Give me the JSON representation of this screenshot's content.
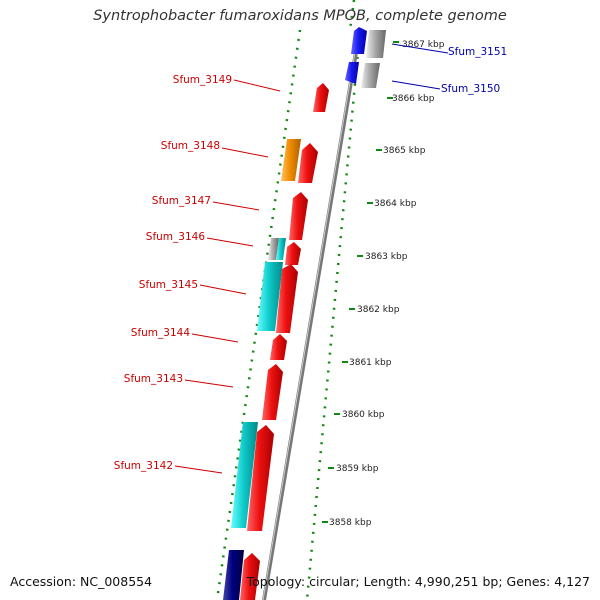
{
  "title": "Syntrophobacter fumaroxidans MPOB, complete genome",
  "footer": {
    "accession": "Accession: NC_008554",
    "topology": "Topology: circular; Length: 4,990,251 bp; Genes: 4,127"
  },
  "colors": {
    "forward": "#ee1111",
    "reverse": "#1a1aee",
    "orange": "#f08c00",
    "cyan": "#11cccc",
    "gray": "#aaaaaa",
    "navy": "#000080",
    "tick": "#118811",
    "backbone": "#888888"
  },
  "gene_labels": [
    {
      "text": "Sfum_3151",
      "color": "blue"
    },
    {
      "text": "Sfum_3150",
      "color": "blue"
    },
    {
      "text": "Sfum_3149",
      "color": "red"
    },
    {
      "text": "Sfum_3148",
      "color": "red"
    },
    {
      "text": "Sfum_3147",
      "color": "red"
    },
    {
      "text": "Sfum_3146",
      "color": "red"
    },
    {
      "text": "Sfum_3145",
      "color": "red"
    },
    {
      "text": "Sfum_3144",
      "color": "red"
    },
    {
      "text": "Sfum_3143",
      "color": "red"
    },
    {
      "text": "Sfum_3142",
      "color": "red"
    }
  ],
  "kbp_labels": [
    "3867 kbp",
    "3866 kbp",
    "3865 kbp",
    "3864 kbp",
    "3863 kbp",
    "3862 kbp",
    "3861 kbp",
    "3860 kbp",
    "3859 kbp",
    "3858 kbp"
  ]
}
